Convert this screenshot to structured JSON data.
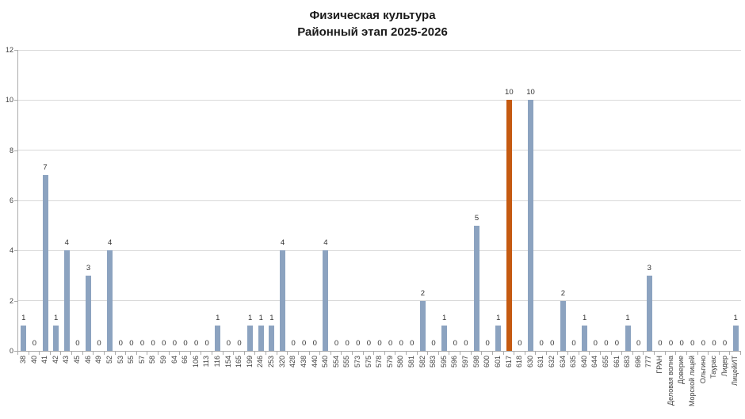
{
  "title": {
    "line1": "Физическая культура",
    "line2": "Районный этап 2025-2026"
  },
  "chart_data": {
    "type": "bar",
    "title": "Физическая культура Районный этап 2025-2026",
    "xlabel": "",
    "ylabel": "",
    "legend": "none",
    "grid": "horizontal",
    "ylim": [
      0,
      12
    ],
    "y_ticks": [
      0,
      2,
      4,
      6,
      8,
      10,
      12
    ],
    "data_labels": true,
    "bar_color": "#8CA3C0",
    "highlight_category": "617",
    "highlight_color": "#C55A11",
    "grid_color": "#D9D9D9",
    "axis_color": "#ABABAB",
    "label_color": "#404040",
    "categories": [
      "38",
      "40",
      "41",
      "42",
      "43",
      "45",
      "46",
      "49",
      "52",
      "53",
      "55",
      "57",
      "58",
      "59",
      "64",
      "66",
      "106",
      "113",
      "116",
      "154",
      "165",
      "199",
      "246",
      "253",
      "320",
      "428",
      "438",
      "440",
      "540",
      "554",
      "555",
      "573",
      "575",
      "578",
      "579",
      "580",
      "581",
      "582",
      "583",
      "595",
      "596",
      "597",
      "598",
      "600",
      "601",
      "617",
      "618",
      "630",
      "631",
      "632",
      "634",
      "635",
      "640",
      "644",
      "655",
      "661",
      "683",
      "696",
      "777",
      "ГРАН",
      "Деловая волна",
      "Доверие",
      "Морской лицей",
      "Ольгино",
      "Таурас",
      "Лидер",
      "ЛицейИТ"
    ],
    "values": [
      1,
      0,
      7,
      1,
      4,
      0,
      3,
      0,
      4,
      0,
      0,
      0,
      0,
      0,
      0,
      0,
      0,
      0,
      1,
      0,
      0,
      1,
      1,
      1,
      4,
      0,
      0,
      0,
      4,
      0,
      0,
      0,
      0,
      0,
      0,
      0,
      0,
      2,
      0,
      1,
      0,
      0,
      5,
      0,
      1,
      10,
      0,
      10,
      0,
      0,
      2,
      0,
      1,
      0,
      0,
      0,
      1,
      0,
      3,
      0,
      0,
      0,
      0,
      0,
      0,
      0,
      1
    ]
  }
}
